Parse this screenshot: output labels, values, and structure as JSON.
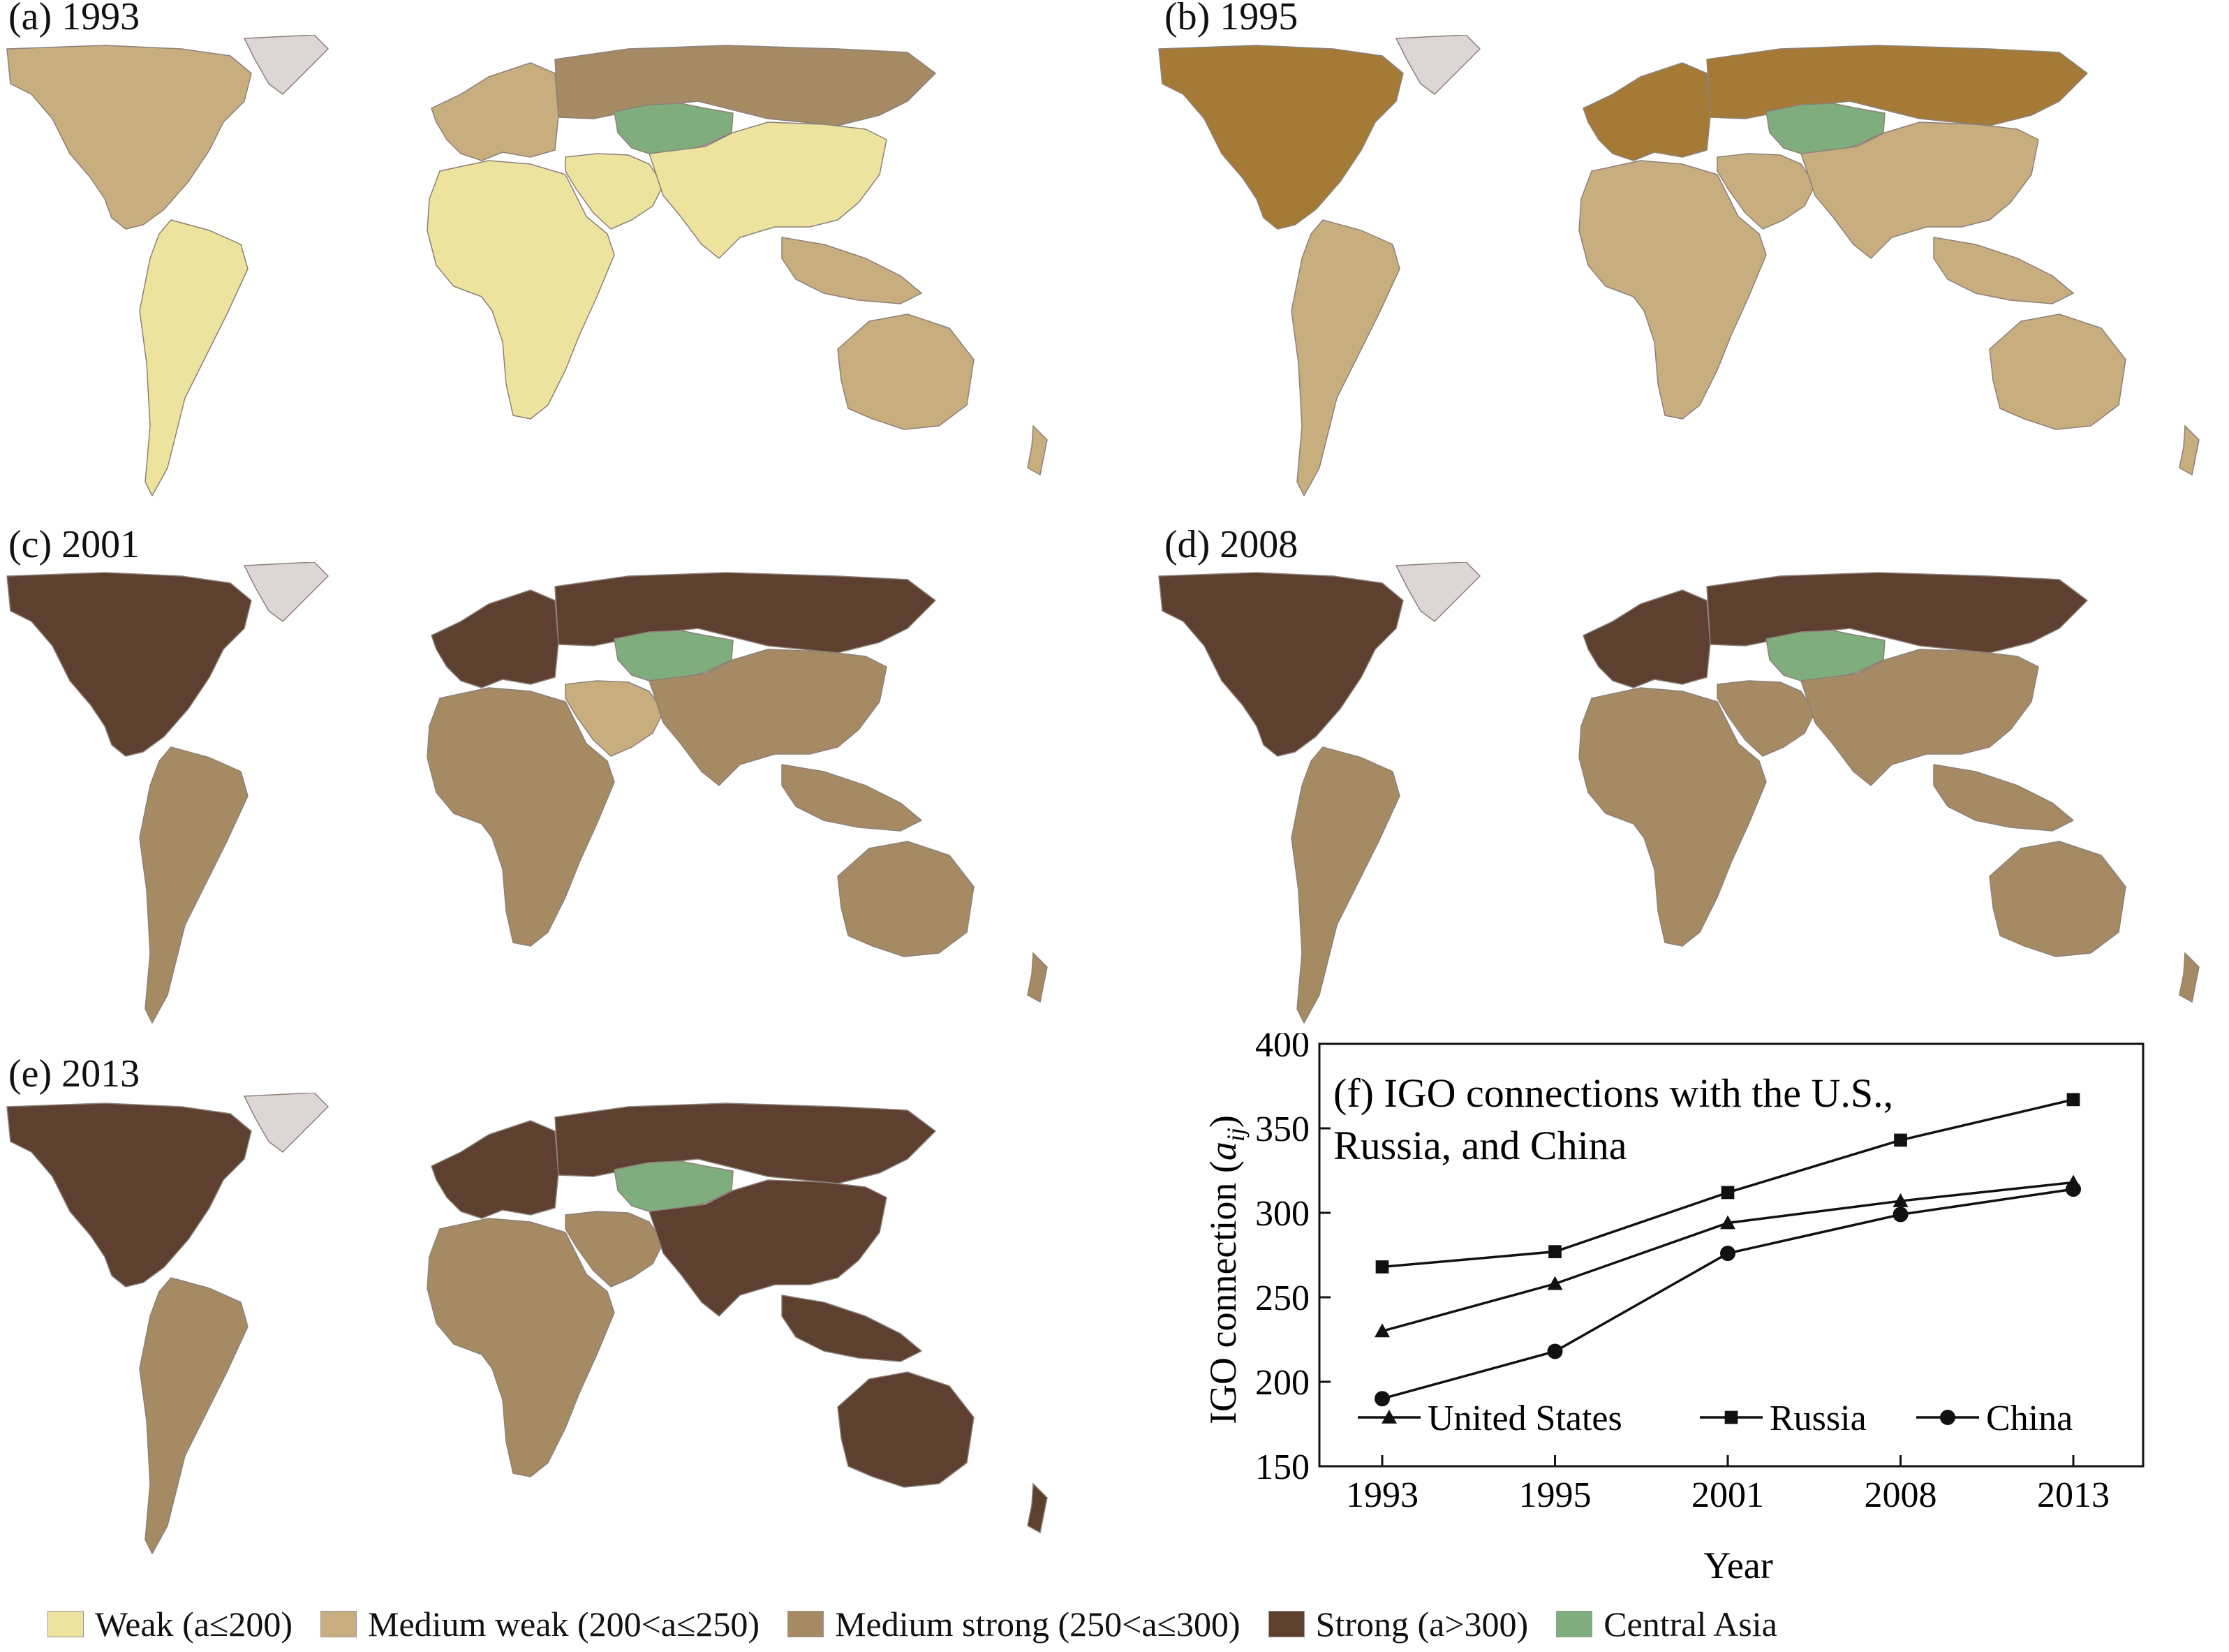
{
  "panels": [
    {
      "label": "(a) 1993",
      "year": "1993",
      "fills": {
        "na": "medium_weak",
        "greenland": "none",
        "sa": "weak",
        "eu": "medium_weak",
        "ru": "medium_strong",
        "ca": "central_asia",
        "me": "weak",
        "af": "weak",
        "as": "weak",
        "sea": "medium_weak",
        "au": "medium_weak"
      }
    },
    {
      "label": "(b) 1995",
      "year": "1995",
      "fills": {
        "na": "strong_1995",
        "greenland": "none",
        "sa": "medium_weak",
        "eu": "strong_1995",
        "ru": "strong_1995",
        "ca": "central_asia",
        "me": "medium_weak",
        "af": "medium_weak",
        "as": "medium_weak",
        "sea": "medium_weak",
        "au": "medium_weak"
      }
    },
    {
      "label": "(c) 2001",
      "year": "2001",
      "fills": {
        "na": "strong",
        "greenland": "none",
        "sa": "medium_strong",
        "eu": "strong",
        "ru": "strong",
        "ca": "central_asia",
        "me": "medium_weak",
        "af": "medium_strong",
        "as": "medium_strong",
        "sea": "medium_strong",
        "au": "medium_strong"
      }
    },
    {
      "label": "(d) 2008",
      "year": "2008",
      "fills": {
        "na": "strong",
        "greenland": "none",
        "sa": "medium_strong",
        "eu": "strong",
        "ru": "strong",
        "ca": "central_asia",
        "me": "medium_strong",
        "af": "medium_strong",
        "as": "medium_strong",
        "sea": "medium_strong",
        "au": "medium_strong"
      }
    },
    {
      "label": "(e) 2013",
      "year": "2013",
      "fills": {
        "na": "strong",
        "greenland": "none",
        "sa": "medium_strong",
        "eu": "strong",
        "ru": "strong",
        "ca": "central_asia",
        "me": "medium_strong",
        "af": "medium_strong",
        "as": "strong",
        "sea": "strong",
        "au": "strong"
      }
    }
  ],
  "colors": {
    "weak": "#ece39f",
    "medium_weak": "#c8ad7f",
    "medium_strong": "#a58a63",
    "strong": "#5d4030",
    "strong_1995": "#a57a36",
    "central_asia": "#7fad7d",
    "none": "#ddd6d6",
    "border": "#8c8179"
  },
  "legend": [
    {
      "label": "Weak (a≤200)",
      "color_key": "weak"
    },
    {
      "label": "Medium weak (200<a≤250)",
      "color_key": "medium_weak"
    },
    {
      "label": "Medium strong (250<a≤300)",
      "color_key": "medium_strong"
    },
    {
      "label": "Strong (a>300)",
      "color_key": "strong"
    },
    {
      "label": "Central Asia",
      "color_key": "central_asia"
    }
  ],
  "chart_data": {
    "type": "line",
    "title_line1": "(f) IGO connections with the U.S.,",
    "title_line2": "Russia, and China",
    "xlabel": "Year",
    "ylabel_main": "IGO connection (",
    "ylabel_var": "a",
    "ylabel_sub": "ij",
    "ylabel_close": ")",
    "categories": [
      "1993",
      "1995",
      "2001",
      "2008",
      "2013"
    ],
    "ylim": [
      150,
      400
    ],
    "yticks": [
      150,
      200,
      250,
      300,
      350,
      400
    ],
    "legend_position": "bottom",
    "series": [
      {
        "name": "United States",
        "marker": "triangle",
        "values": [
          230,
          258,
          294,
          307,
          318
        ]
      },
      {
        "name": "Russia",
        "marker": "square",
        "values": [
          268,
          277,
          312,
          343,
          367
        ]
      },
      {
        "name": "China",
        "marker": "circle",
        "values": [
          190,
          218,
          276,
          299,
          314
        ]
      }
    ]
  }
}
